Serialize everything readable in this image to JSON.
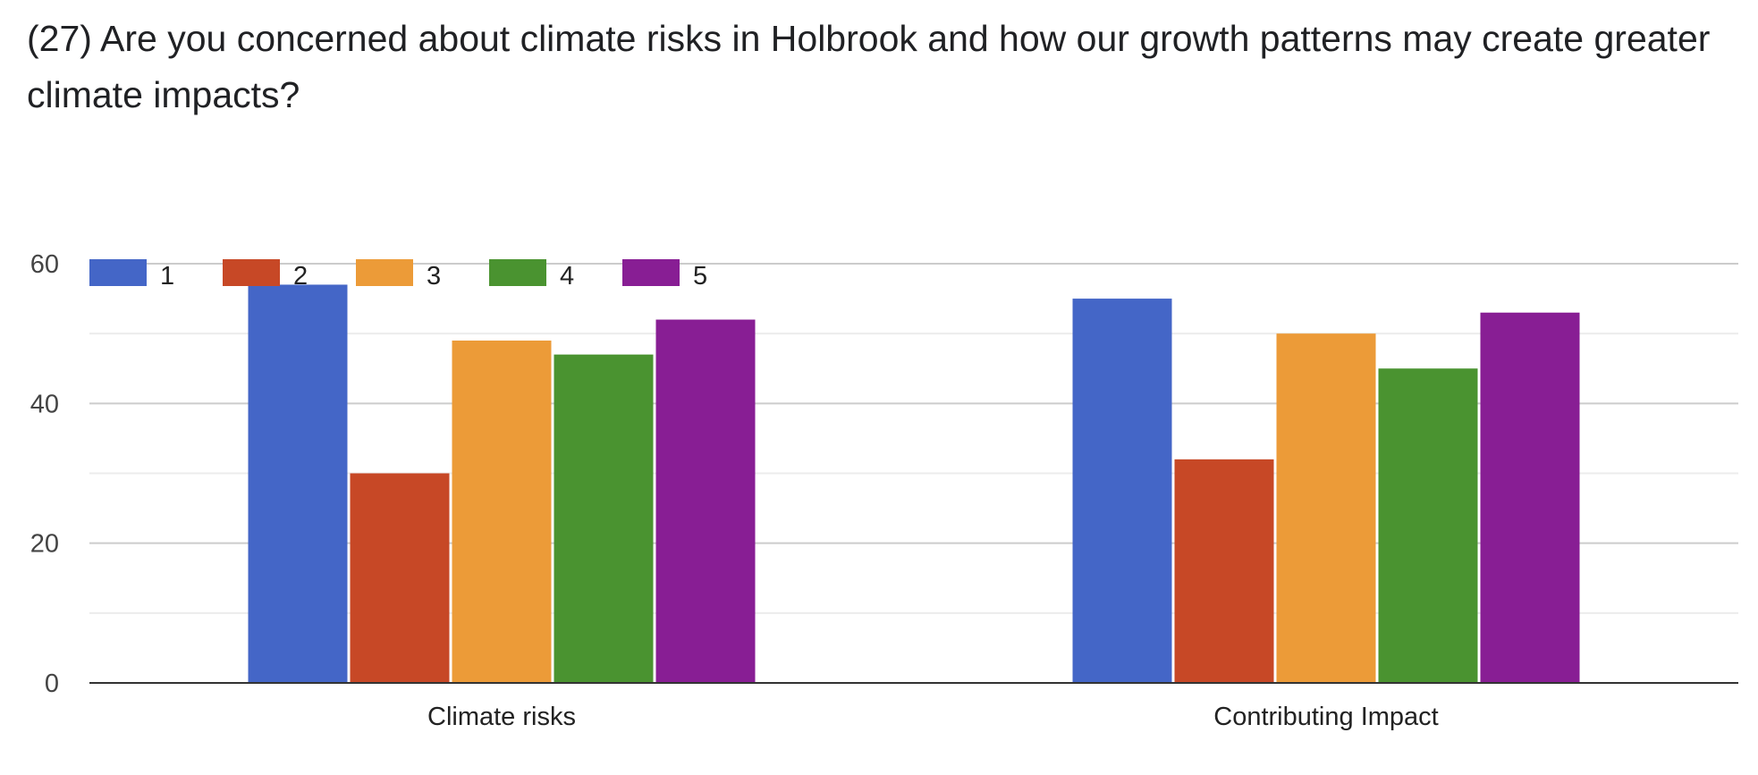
{
  "question": {
    "title": "(27) Are you concerned about climate risks in Holbrook and how our growth patterns may create greater climate impacts?"
  },
  "chart_data": {
    "type": "bar",
    "title": "(27) Are you concerned about climate risks in Holbrook and how our growth patterns may create greater climate impacts?",
    "categories": [
      "Climate risks",
      "Contributing Impact"
    ],
    "series": [
      {
        "name": "1",
        "color": "#4466c7",
        "values": [
          57,
          55
        ]
      },
      {
        "name": "2",
        "color": "#c74826",
        "values": [
          30,
          32
        ]
      },
      {
        "name": "3",
        "color": "#ec9b38",
        "values": [
          49,
          50
        ]
      },
      {
        "name": "4",
        "color": "#4a9330",
        "values": [
          47,
          45
        ]
      },
      {
        "name": "5",
        "color": "#881e94",
        "values": [
          52,
          53
        ]
      }
    ],
    "ylim": [
      0,
      60
    ],
    "yticks": [
      0,
      20,
      40,
      60
    ],
    "xlabel": "",
    "ylabel": "",
    "grid": true,
    "legend_position": "top-left"
  }
}
